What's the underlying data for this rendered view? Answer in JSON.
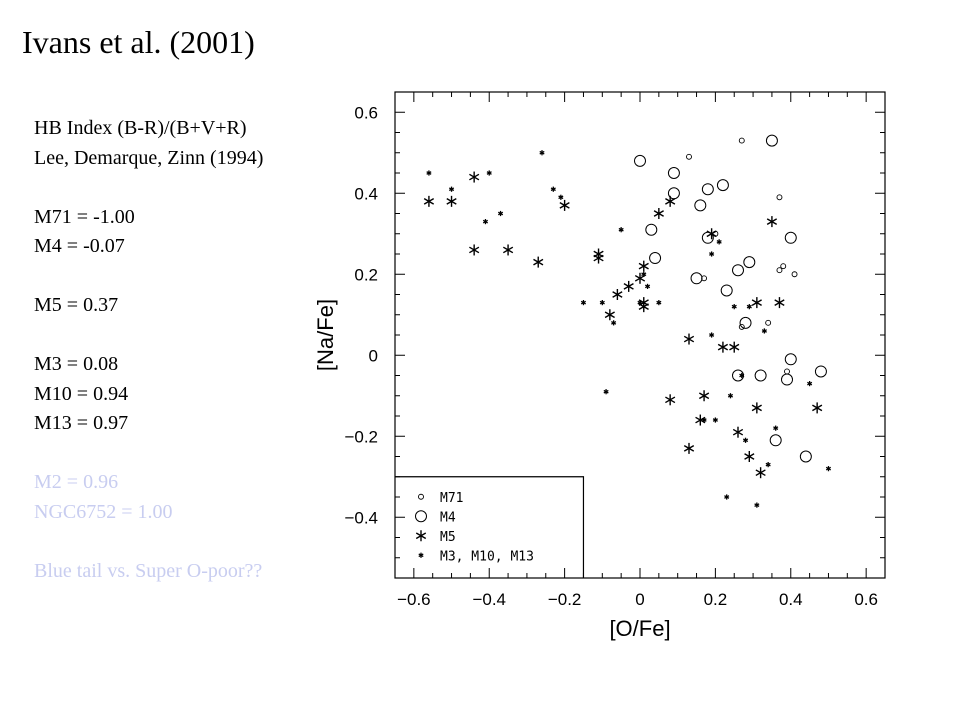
{
  "slide": {
    "title": "Ivans et al. (2001)",
    "lines": [
      {
        "text": "HB Index (B-R)/(B+V+R)",
        "faded": false
      },
      {
        "text": "Lee, Demarque, Zinn (1994)",
        "faded": false
      },
      {
        "text": "",
        "faded": false
      },
      {
        "text": "M71 = -1.00",
        "faded": false
      },
      {
        "text": "M4 = -0.07",
        "faded": false
      },
      {
        "text": "",
        "faded": false
      },
      {
        "text": "M5 = 0.37",
        "faded": false
      },
      {
        "text": "",
        "faded": false
      },
      {
        "text": "M3 = 0.08",
        "faded": false
      },
      {
        "text": "M10 = 0.94",
        "faded": false
      },
      {
        "text": "M13 = 0.97",
        "faded": false
      },
      {
        "text": "",
        "faded": false
      },
      {
        "text": "M2 = 0.96",
        "faded": true
      },
      {
        "text": "NGC6752 = 1.00",
        "faded": true
      },
      {
        "text": "",
        "faded": true
      },
      {
        "text": "Blue tail vs. Super O-poor??",
        "faded": true
      }
    ]
  },
  "chart_data": {
    "type": "scatter",
    "xlabel": "[O/Fe]",
    "ylabel": "[Na/Fe]",
    "xlim": [
      -0.65,
      0.65
    ],
    "ylim": [
      -0.55,
      0.65
    ],
    "xticks": [
      -0.6,
      -0.4,
      -0.2,
      0,
      0.2,
      0.4,
      0.6
    ],
    "xtick_labels": [
      "−0.6",
      "−0.4",
      "−0.2",
      "0",
      "0.2",
      "0.4",
      "0.6"
    ],
    "yticks": [
      -0.4,
      -0.2,
      0,
      0.2,
      0.4,
      0.6
    ],
    "ytick_labels": [
      "−0.4",
      "−0.2",
      "0",
      "0.2",
      "0.4",
      "0.6"
    ],
    "legend_position": "bottom-left",
    "series": [
      {
        "name": "M71",
        "marker": "small-circle",
        "points": [
          [
            0.27,
            0.53
          ],
          [
            0.13,
            0.49
          ],
          [
            0.37,
            0.39
          ],
          [
            0.37,
            0.21
          ],
          [
            0.38,
            0.22
          ],
          [
            0.41,
            0.2
          ],
          [
            0.17,
            0.19
          ],
          [
            0.2,
            0.3
          ],
          [
            0.27,
            0.07
          ],
          [
            0.34,
            0.08
          ],
          [
            0.39,
            -0.04
          ]
        ]
      },
      {
        "name": "M4",
        "marker": "large-circle",
        "points": [
          [
            0.0,
            0.48
          ],
          [
            0.35,
            0.53
          ],
          [
            0.09,
            0.45
          ],
          [
            0.18,
            0.41
          ],
          [
            0.22,
            0.42
          ],
          [
            0.09,
            0.4
          ],
          [
            0.16,
            0.37
          ],
          [
            0.03,
            0.31
          ],
          [
            0.18,
            0.29
          ],
          [
            0.4,
            0.29
          ],
          [
            0.04,
            0.24
          ],
          [
            0.29,
            0.23
          ],
          [
            0.26,
            0.21
          ],
          [
            0.15,
            0.19
          ],
          [
            0.23,
            0.16
          ],
          [
            0.28,
            0.08
          ],
          [
            0.4,
            -0.01
          ],
          [
            0.48,
            -0.04
          ],
          [
            0.26,
            -0.05
          ],
          [
            0.32,
            -0.05
          ],
          [
            0.39,
            -0.06
          ],
          [
            0.36,
            -0.21
          ],
          [
            0.44,
            -0.25
          ]
        ]
      },
      {
        "name": "M5",
        "marker": "asterisk-large",
        "points": [
          [
            -0.56,
            0.38
          ],
          [
            -0.5,
            0.38
          ],
          [
            -0.44,
            0.44
          ],
          [
            -0.44,
            0.26
          ],
          [
            -0.35,
            0.26
          ],
          [
            -0.27,
            0.23
          ],
          [
            -0.2,
            0.37
          ],
          [
            -0.11,
            0.25
          ],
          [
            -0.11,
            0.24
          ],
          [
            -0.06,
            0.15
          ],
          [
            -0.08,
            0.1
          ],
          [
            -0.03,
            0.17
          ],
          [
            0.0,
            0.19
          ],
          [
            0.01,
            0.22
          ],
          [
            0.01,
            0.13
          ],
          [
            0.01,
            0.12
          ],
          [
            0.05,
            0.35
          ],
          [
            0.08,
            0.38
          ],
          [
            0.13,
            0.04
          ],
          [
            0.19,
            0.3
          ],
          [
            0.22,
            0.02
          ],
          [
            0.25,
            0.02
          ],
          [
            0.31,
            0.13
          ],
          [
            0.37,
            0.13
          ],
          [
            0.35,
            0.33
          ],
          [
            0.13,
            -0.23
          ],
          [
            0.16,
            -0.16
          ],
          [
            0.17,
            -0.1
          ],
          [
            0.26,
            -0.19
          ],
          [
            0.29,
            -0.25
          ],
          [
            0.31,
            -0.13
          ],
          [
            0.32,
            -0.29
          ],
          [
            0.47,
            -0.13
          ],
          [
            0.08,
            -0.11
          ]
        ]
      },
      {
        "name": "M3, M10, M13",
        "marker": "asterisk-small",
        "points": [
          [
            -0.56,
            0.45
          ],
          [
            -0.5,
            0.41
          ],
          [
            -0.4,
            0.45
          ],
          [
            -0.41,
            0.33
          ],
          [
            -0.37,
            0.35
          ],
          [
            -0.23,
            0.41
          ],
          [
            -0.26,
            0.5
          ],
          [
            -0.21,
            0.39
          ],
          [
            -0.15,
            0.13
          ],
          [
            -0.1,
            0.13
          ],
          [
            -0.05,
            0.31
          ],
          [
            -0.09,
            -0.09
          ],
          [
            -0.07,
            0.08
          ],
          [
            0.0,
            0.13
          ],
          [
            0.05,
            0.13
          ],
          [
            0.01,
            0.2
          ],
          [
            0.02,
            0.17
          ],
          [
            0.19,
            0.25
          ],
          [
            0.19,
            0.05
          ],
          [
            0.21,
            0.28
          ],
          [
            0.25,
            0.12
          ],
          [
            0.24,
            -0.1
          ],
          [
            0.27,
            -0.05
          ],
          [
            0.29,
            0.12
          ],
          [
            0.33,
            0.06
          ],
          [
            0.17,
            -0.16
          ],
          [
            0.2,
            -0.16
          ],
          [
            0.28,
            -0.21
          ],
          [
            0.34,
            -0.27
          ],
          [
            0.36,
            -0.18
          ],
          [
            0.45,
            -0.07
          ],
          [
            0.5,
            -0.28
          ],
          [
            0.23,
            -0.35
          ],
          [
            0.31,
            -0.37
          ]
        ]
      }
    ],
    "colors": {
      "axis": "#000000",
      "text": "#000000",
      "faded_text": "#c8cdf0"
    }
  }
}
